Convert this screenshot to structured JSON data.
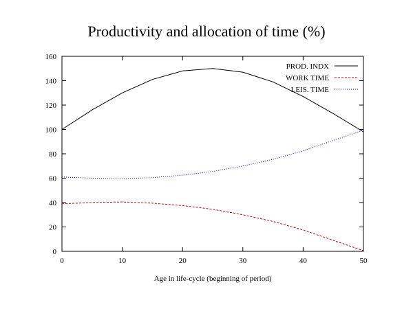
{
  "chart_data": {
    "type": "line",
    "title": "Productivity and allocation of time (%)",
    "xlabel": "Age in life-cycle (beginning of period)",
    "ylabel": "",
    "xlim": [
      0,
      50
    ],
    "ylim": [
      0,
      160
    ],
    "x_ticks": [
      "0",
      "10",
      "20",
      "30",
      "40",
      "50"
    ],
    "y_ticks": [
      "0",
      "20",
      "40",
      "60",
      "80",
      "100",
      "120",
      "140",
      "160"
    ],
    "grid": false,
    "legend_position": "top-right",
    "x": [
      0,
      5,
      10,
      15,
      20,
      25,
      30,
      35,
      40,
      45,
      50
    ],
    "series": [
      {
        "name": "PROD. INDX",
        "color": "#000000",
        "dash": "solid",
        "values": [
          100,
          116,
          130,
          141,
          148,
          150,
          147,
          139,
          127,
          113,
          98
        ]
      },
      {
        "name": "WORK TIME",
        "color": "#cc0000",
        "dash": "dashed",
        "values": [
          39,
          40,
          40.5,
          39.5,
          37.5,
          34.5,
          30,
          24.5,
          17.5,
          9,
          0.5
        ]
      },
      {
        "name": "LEIS. TIME",
        "color": "#0000cc",
        "dash": "dotted",
        "values": [
          61,
          60,
          59.5,
          60.5,
          62.5,
          65.5,
          70,
          75.5,
          82.5,
          91,
          99.5
        ]
      }
    ]
  }
}
